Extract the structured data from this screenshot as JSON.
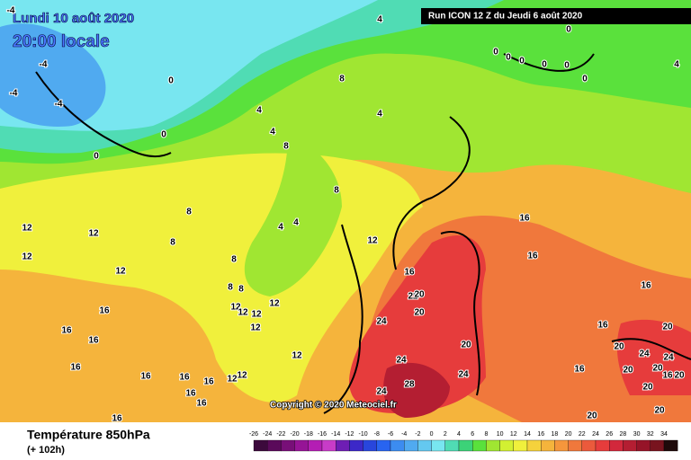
{
  "header": {
    "date": "Lundi 10 août 2020",
    "time": "20:00 locale",
    "run": "Run ICON 12 Z du Jeudi 6 août 2020"
  },
  "copyright": "Copyright © 2020 Meteociel.fr",
  "footer": {
    "title": "Température 850hPa",
    "subtitle": "(+ 102h)"
  },
  "legend": {
    "ticks": [
      -26,
      -24,
      -22,
      -20,
      -18,
      -16,
      -14,
      -12,
      -10,
      -8,
      -6,
      -4,
      -2,
      0,
      2,
      4,
      6,
      8,
      10,
      12,
      14,
      16,
      18,
      20,
      22,
      24,
      26,
      28,
      30,
      32,
      34
    ],
    "colors": [
      "#3c0a3c",
      "#5a0a5a",
      "#780f78",
      "#961496",
      "#b41eb4",
      "#c83cc8",
      "#6e1eb4",
      "#3c28c8",
      "#2846dc",
      "#2864f0",
      "#3c8cf0",
      "#50aaf0",
      "#64c8f0",
      "#78e6f0",
      "#50dcb4",
      "#3cd278",
      "#5ae13c",
      "#a0e632",
      "#d2f032",
      "#f0f03c",
      "#f5d23c",
      "#f5b43c",
      "#f5963c",
      "#f0783c",
      "#eb5a3c",
      "#e63c3c",
      "#d2283c",
      "#b41e32",
      "#961428",
      "#78141e",
      "#1e0a0a"
    ]
  },
  "map_labels": [
    -4,
    -4,
    -4,
    -4,
    0,
    0,
    0,
    4,
    0,
    0,
    0,
    0,
    0,
    0,
    0,
    4,
    8,
    4,
    4,
    4,
    8,
    8,
    8,
    8,
    4,
    4,
    12,
    12,
    12,
    12,
    8,
    8,
    8,
    12,
    12,
    12,
    12,
    12,
    12,
    16,
    16,
    16,
    16,
    16,
    16,
    16,
    16,
    16,
    16,
    16,
    16,
    16,
    16,
    16,
    12,
    12,
    12,
    22,
    20,
    20,
    24,
    20,
    24,
    24,
    28,
    24,
    20,
    20,
    24,
    24,
    20,
    20,
    16,
    20,
    20,
    16,
    20,
    20
  ]
}
